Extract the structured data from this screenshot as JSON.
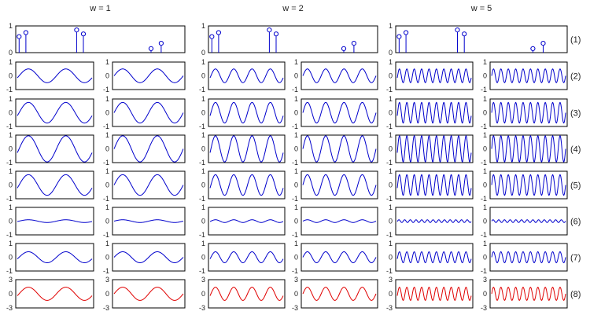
{
  "figure": {
    "columns": [
      {
        "label": "w = 1",
        "w": 1
      },
      {
        "label": "w = 2",
        "w": 2
      },
      {
        "label": "w = 5",
        "w": 5
      }
    ],
    "row_labels": [
      "(1)",
      "(2)",
      "(3)",
      "(4)",
      "(5)",
      "(6)",
      "(7)",
      "(8)"
    ],
    "colors": {
      "axis": "#000000",
      "curve": "#0000cc",
      "result": "#e00000",
      "stem": "#0000cc"
    }
  },
  "chart_data": {
    "type": "line",
    "stem_row": {
      "type": "scatter",
      "ylim": [
        0,
        1
      ],
      "ytick_labels": [
        "1",
        "0"
      ],
      "points": [
        {
          "x": 0.02,
          "y": 0.6
        },
        {
          "x": 0.06,
          "y": 0.75
        },
        {
          "x": 0.36,
          "y": 0.85
        },
        {
          "x": 0.4,
          "y": 0.7
        },
        {
          "x": 0.8,
          "y": 0.15
        },
        {
          "x": 0.86,
          "y": 0.35
        }
      ]
    },
    "wave_rows": [
      {
        "row": "(2)",
        "amplitude": 0.5,
        "ylim": [
          -1,
          1
        ],
        "ytick_labels": [
          "1",
          "0",
          "-1"
        ],
        "cycles": [
          [
            2,
            2
          ],
          [
            4,
            4
          ],
          [
            10,
            10
          ]
        ]
      },
      {
        "row": "(3)",
        "amplitude": 0.75,
        "ylim": [
          -1,
          1
        ],
        "ytick_labels": [
          "1",
          "0",
          "-1"
        ],
        "cycles": [
          [
            2,
            2
          ],
          [
            4,
            4
          ],
          [
            10,
            10
          ]
        ]
      },
      {
        "row": "(4)",
        "amplitude": 0.95,
        "ylim": [
          -1,
          1
        ],
        "ytick_labels": [
          "1",
          "0",
          "-1"
        ],
        "cycles": [
          [
            2,
            2
          ],
          [
            4,
            4
          ],
          [
            10,
            10
          ]
        ]
      },
      {
        "row": "(5)",
        "amplitude": 0.75,
        "ylim": [
          -1,
          1
        ],
        "ytick_labels": [
          "1",
          "0",
          "-1"
        ],
        "cycles": [
          [
            2,
            2
          ],
          [
            4,
            4
          ],
          [
            10,
            10
          ]
        ]
      },
      {
        "row": "(6)",
        "amplitude": 0.1,
        "ylim": [
          -1,
          1
        ],
        "ytick_labels": [
          "1",
          "0",
          "-1"
        ],
        "cycles": [
          [
            2,
            2
          ],
          [
            4,
            4
          ],
          [
            13,
            13
          ]
        ]
      },
      {
        "row": "(7)",
        "amplitude": 0.4,
        "ylim": [
          -1,
          1
        ],
        "ytick_labels": [
          "1",
          "0",
          "-1"
        ],
        "cycles": [
          [
            2,
            2
          ],
          [
            4,
            4
          ],
          [
            10,
            10
          ]
        ]
      },
      {
        "row": "(8)",
        "amplitude": 1.4,
        "ylim": [
          -3,
          3
        ],
        "ytick_labels": [
          "3",
          "0",
          "-3"
        ],
        "cycles": [
          [
            2,
            2
          ],
          [
            4,
            4
          ],
          [
            10,
            10
          ]
        ],
        "color": "result"
      }
    ]
  }
}
